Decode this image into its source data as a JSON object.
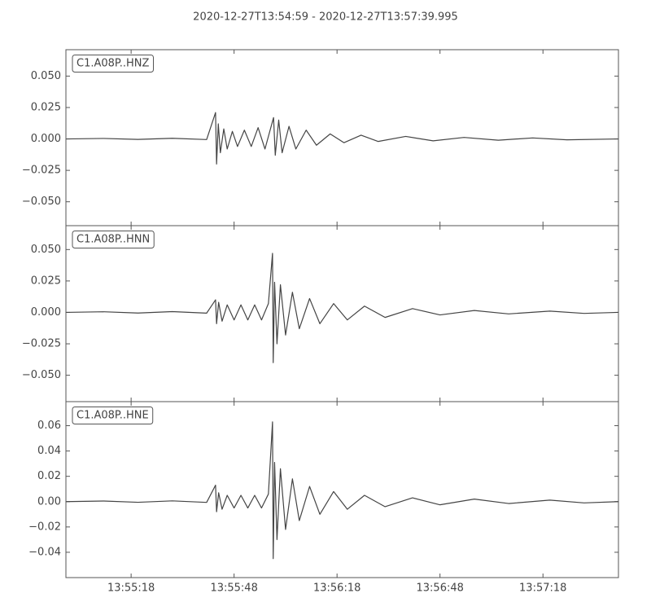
{
  "chart_data": [
    {
      "type": "line",
      "title": "2020-12-27T13:54:59  -  2020-12-27T13:57:39.995",
      "label": "C1.A08P..HNZ",
      "ylim": [
        -0.069,
        0.071
      ],
      "yticks": [
        {
          "value": -0.05,
          "label": "−0.050"
        },
        {
          "value": -0.025,
          "label": "−0.025"
        },
        {
          "value": 0,
          "label": "0.000"
        },
        0.025,
        {
          "value": 0.05,
          "label": "0.050"
        }
      ],
      "series": [
        {
          "color": "#444444",
          "x": [
            "13:54:59",
            "13:55:10",
            "13:55:20",
            "13:55:30",
            "13:55:40",
            "13:55:42.6",
            "13:55:42.9",
            "13:55:43.4",
            "13:55:44",
            "13:55:45",
            "13:55:46",
            "13:55:47.5",
            "13:55:49",
            "13:55:51",
            "13:55:53",
            "13:55:55",
            "13:55:57",
            "13:55:59.5",
            "13:56:00",
            "13:56:01",
            "13:56:02",
            "13:56:04",
            "13:56:06",
            "13:56:09",
            "13:56:12",
            "13:56:16",
            "13:56:20",
            "13:56:25",
            "13:56:30",
            "13:56:38",
            "13:56:46",
            "13:56:55",
            "13:57:05",
            "13:57:15",
            "13:57:25",
            "13:57:39.9"
          ],
          "values": [
            0,
            0.0004,
            -0.0004,
            0.0005,
            -0.0005,
            0.021,
            -0.02,
            0.012,
            -0.011,
            0.008,
            -0.008,
            0.006,
            -0.006,
            0.007,
            -0.006,
            0.009,
            -0.008,
            0.017,
            -0.013,
            0.015,
            -0.011,
            0.01,
            -0.008,
            0.007,
            -0.005,
            0.004,
            -0.003,
            0.003,
            -0.002,
            0.002,
            -0.0015,
            0.0012,
            -0.001,
            0.0008,
            -0.0007,
            0
          ]
        }
      ]
    },
    {
      "type": "line",
      "label": "C1.A08P..HNN",
      "ylim": [
        -0.071,
        0.069
      ],
      "yticks": [
        {
          "value": -0.05,
          "label": "−0.050"
        },
        {
          "value": -0.025,
          "label": "−0.025"
        },
        {
          "value": 0,
          "label": "0.000"
        },
        0.025,
        {
          "value": 0.05,
          "label": "0.050"
        }
      ],
      "series": [
        {
          "color": "#444444",
          "x": [
            "13:54:59",
            "13:55:10",
            "13:55:20",
            "13:55:30",
            "13:55:40",
            "13:55:42.6",
            "13:55:42.9",
            "13:55:43.5",
            "13:55:44.5",
            "13:55:46",
            "13:55:48",
            "13:55:50",
            "13:55:52",
            "13:55:54",
            "13:55:56",
            "13:55:58",
            "13:55:59.2",
            "13:55:59.4",
            "13:55:59.8",
            "13:56:00.5",
            "13:56:01.5",
            "13:56:03",
            "13:56:05",
            "13:56:07",
            "13:56:10",
            "13:56:13",
            "13:56:17",
            "13:56:21",
            "13:56:26",
            "13:56:32",
            "13:56:40",
            "13:56:48",
            "13:56:58",
            "13:57:08",
            "13:57:20",
            "13:57:30",
            "13:57:39.9"
          ],
          "values": [
            0,
            0.0005,
            -0.0005,
            0.0006,
            -0.0006,
            0.01,
            -0.009,
            0.008,
            -0.007,
            0.006,
            -0.006,
            0.006,
            -0.006,
            0.006,
            -0.006,
            0.007,
            0.047,
            -0.04,
            0.024,
            -0.025,
            0.022,
            -0.018,
            0.016,
            -0.013,
            0.011,
            -0.009,
            0.007,
            -0.006,
            0.005,
            -0.004,
            0.003,
            -0.002,
            0.0015,
            -0.0012,
            0.001,
            -0.0008,
            0
          ]
        }
      ]
    },
    {
      "type": "line",
      "label": "C1.A08P..HNE",
      "ylim": [
        -0.06,
        0.079
      ],
      "yticks": [
        {
          "value": -0.04,
          "label": "−0.04"
        },
        {
          "value": -0.02,
          "label": "−0.02"
        },
        {
          "value": 0,
          "label": "0.00"
        },
        0.02,
        0.04,
        0.06
      ],
      "xlim": [
        "13:54:59",
        "13:57:39.995"
      ],
      "xticks": [
        "13:55:18",
        "13:55:48",
        "13:56:18",
        "13:56:48",
        "13:57:18"
      ],
      "series": [
        {
          "color": "#444444",
          "x": [
            "13:54:59",
            "13:55:10",
            "13:55:20",
            "13:55:30",
            "13:55:40",
            "13:55:42.6",
            "13:55:42.9",
            "13:55:43.5",
            "13:55:44.5",
            "13:55:46",
            "13:55:48",
            "13:55:50",
            "13:55:52",
            "13:55:54",
            "13:55:56",
            "13:55:58",
            "13:55:59.2",
            "13:55:59.4",
            "13:55:59.8",
            "13:56:00.5",
            "13:56:01.5",
            "13:56:03",
            "13:56:05",
            "13:56:07",
            "13:56:10",
            "13:56:13",
            "13:56:17",
            "13:56:21",
            "13:56:26",
            "13:56:32",
            "13:56:40",
            "13:56:48",
            "13:56:58",
            "13:57:08",
            "13:57:20",
            "13:57:30",
            "13:57:39.9"
          ],
          "values": [
            0,
            0.0005,
            -0.0005,
            0.0006,
            -0.0006,
            0.013,
            -0.008,
            0.007,
            -0.006,
            0.005,
            -0.005,
            0.005,
            -0.005,
            0.005,
            -0.005,
            0.006,
            0.063,
            -0.045,
            0.031,
            -0.03,
            0.026,
            -0.022,
            0.018,
            -0.015,
            0.012,
            -0.01,
            0.008,
            -0.006,
            0.005,
            -0.004,
            0.003,
            -0.0025,
            0.002,
            -0.0015,
            0.0012,
            -0.001,
            0
          ]
        }
      ]
    }
  ]
}
